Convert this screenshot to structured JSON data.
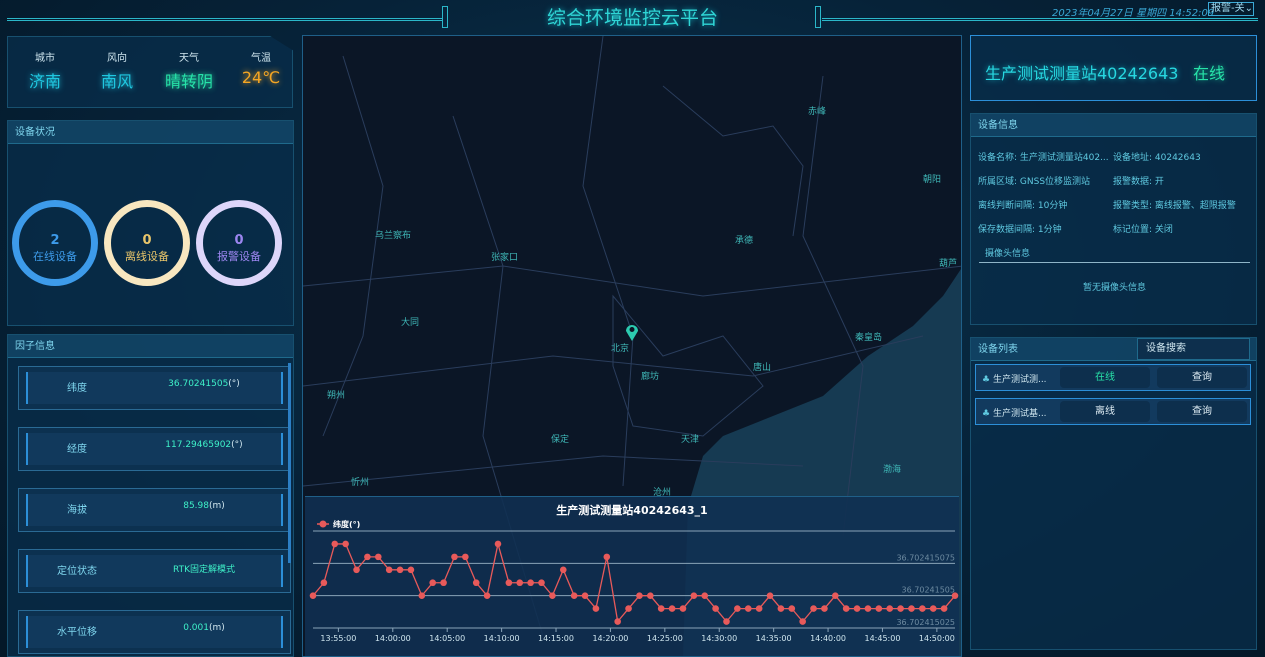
{
  "header": {
    "title": "综合环境监控云平台",
    "clock": "2023年04月27日 星期四 14:52:09",
    "alarm_select": "报警-关"
  },
  "weather": [
    {
      "label": "城市",
      "value": "济南",
      "color": "#1fc7e0"
    },
    {
      "label": "风向",
      "value": "南风",
      "color": "#1fc7e0"
    },
    {
      "label": "天气",
      "value": "晴转阴",
      "color": "#27e2a8"
    },
    {
      "label": "气温",
      "value": "24℃",
      "color": "#f5a623"
    }
  ],
  "device_status": {
    "title": "设备状况",
    "rings": [
      {
        "count": "2",
        "label": "在线设备",
        "color": "#3d9bea"
      },
      {
        "count": "0",
        "label": "离线设备",
        "color": "#f8e7c0",
        "text_color": "#e8c56a"
      },
      {
        "count": "0",
        "label": "报警设备",
        "color": "#ddd6fa",
        "text_color": "#9c86f0"
      }
    ]
  },
  "factors": {
    "title": "因子信息",
    "items": [
      {
        "label": "纬度",
        "value": "36.70241505",
        "unit": "(°)"
      },
      {
        "label": "经度",
        "value": "117.29465902",
        "unit": "(°)"
      },
      {
        "label": "海拔",
        "value": "85.98",
        "unit": "(m)"
      },
      {
        "label": "定位状态",
        "value": "RTK固定解模式",
        "unit": ""
      },
      {
        "label": "水平位移",
        "value": "0.001",
        "unit": "(m)"
      }
    ]
  },
  "map": {
    "cities": [
      "赤峰",
      "朝阳",
      "乌兰察布",
      "张家口",
      "承德",
      "葫芦",
      "大同",
      "北京",
      "秦皇岛",
      "廊坊",
      "唐山",
      "朔州",
      "保定",
      "天津",
      "渤海",
      "忻州",
      "沧州"
    ],
    "marker": "map-pin-icon"
  },
  "station": {
    "name": "生产测试测量站40242643",
    "status": "在线"
  },
  "device_info": {
    "title": "设备信息",
    "rows": [
      [
        "设备名称: 生产测试测量站402...",
        "设备地址: 40242643"
      ],
      [
        "所属区域: GNSS位移监测站",
        "报警数据: 开"
      ],
      [
        "离线判断间隔: 10分钟",
        "报警类型: 离线报警、超限报警"
      ],
      [
        "保存数据间隔: 1分钟",
        "标记位置: 关闭"
      ]
    ],
    "camera_title": "摄像头信息",
    "camera_empty": "暂无摄像头信息"
  },
  "device_list": {
    "title": "设备列表",
    "search_placeholder": "设备搜索",
    "items": [
      {
        "name": "生产测试测...",
        "status": "在线",
        "action": "查询"
      },
      {
        "name": "生产测试基...",
        "status": "离线",
        "action": "查询"
      }
    ]
  },
  "chart_data": {
    "type": "line",
    "title": "生产测试测量站40242643_1",
    "legend": "纬度(°)",
    "legend_position": "top-left",
    "color": "#e85a5a",
    "grid": true,
    "ylim": [
      36.702415025,
      36.7024151
    ],
    "ytick_labels": [
      "36.702415075",
      "36.70241505",
      "36.702415025"
    ],
    "xtick_labels": [
      "13:55:00",
      "14:00:00",
      "14:05:00",
      "14:10:00",
      "14:15:00",
      "14:20:00",
      "14:25:00",
      "14:30:00",
      "14:35:00",
      "14:40:00",
      "14:45:00",
      "14:50:00"
    ],
    "x_start": "13:52:40",
    "x_step_minutes": 1,
    "values": [
      36.70241505,
      36.70241506,
      36.70241509,
      36.70241509,
      36.70241507,
      36.70241508,
      36.70241508,
      36.70241507,
      36.70241507,
      36.70241507,
      36.70241505,
      36.70241506,
      36.70241506,
      36.70241508,
      36.70241508,
      36.70241506,
      36.70241505,
      36.70241509,
      36.70241506,
      36.70241506,
      36.70241506,
      36.70241506,
      36.70241505,
      36.70241507,
      36.70241505,
      36.70241505,
      36.70241504,
      36.70241508,
      36.70241503,
      36.70241504,
      36.70241505,
      36.70241505,
      36.70241504,
      36.70241504,
      36.70241504,
      36.70241505,
      36.70241505,
      36.70241504,
      36.70241503,
      36.70241504,
      36.70241504,
      36.70241504,
      36.70241505,
      36.70241504,
      36.70241504,
      36.70241503,
      36.70241504,
      36.70241504,
      36.70241505,
      36.70241504,
      36.70241504,
      36.70241504,
      36.70241504,
      36.70241504,
      36.70241504,
      36.70241504,
      36.70241504,
      36.70241504,
      36.70241504,
      36.70241505
    ]
  }
}
